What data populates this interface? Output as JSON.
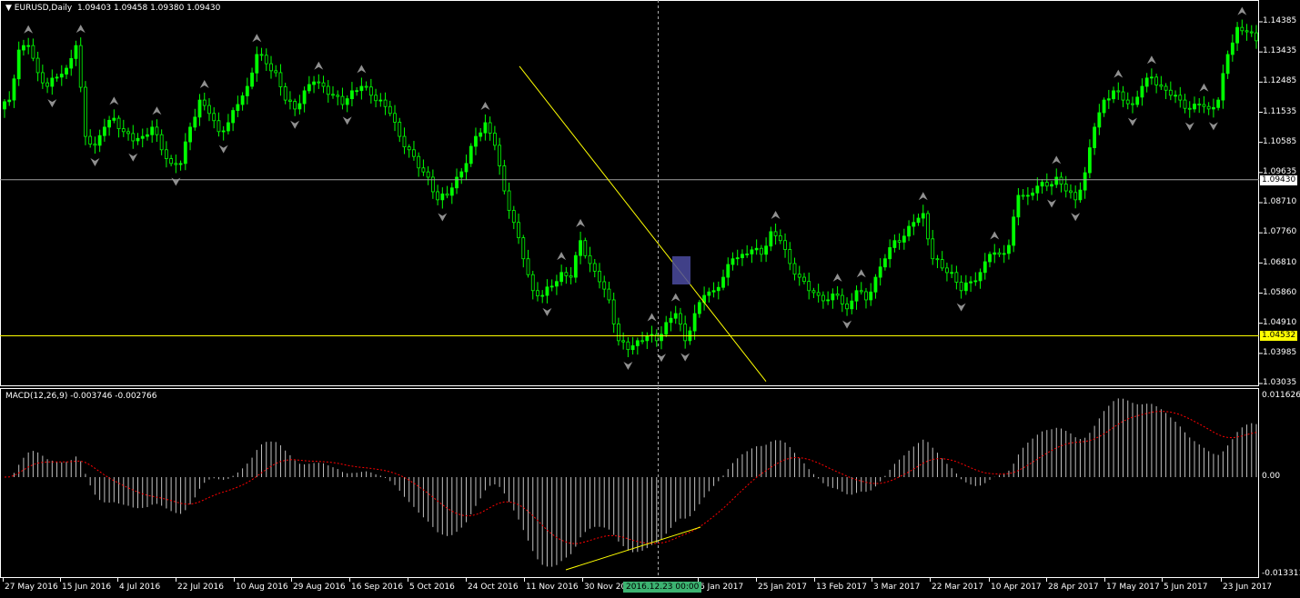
{
  "header": {
    "symbol": "EURUSD,Daily",
    "ohlc": "1.09403 1.09458 1.09380 1.09430",
    "menu_icon": "triangle-down-icon"
  },
  "macd_header": {
    "label": "MACD(12,26,9) -0.003746 -0.002766"
  },
  "price_axis": [
    "1.14385",
    "1.13435",
    "1.12485",
    "1.11535",
    "1.10585",
    "1.09635",
    "1.08710",
    "1.07760",
    "1.06810",
    "1.05860",
    "1.04910",
    "1.03985",
    "1.03035"
  ],
  "price_tags": {
    "bid": "1.09430",
    "hline": "1.04532"
  },
  "macd_axis": [
    "0.011626",
    "0.00",
    "-0.013311"
  ],
  "date_axis": [
    "27 May 2016",
    "15 Jun 2016",
    "4 Jul 2016",
    "22 Jul 2016",
    "10 Aug 2016",
    "29 Aug 2016",
    "16 Sep 2016",
    "5 Oct 2016",
    "24 Oct 2016",
    "11 Nov 2016",
    "30 Nov 2016",
    "6 Jan 2017",
    "25 Jan 2017",
    "13 Feb 2017",
    "3 Mar 2017",
    "22 Mar 2017",
    "10 Apr 2017",
    "28 Apr 2017",
    "17 May 2017",
    "5 Jun 2017",
    "23 Jun 2017"
  ],
  "crosshair_label": "2016.12.23 00:00",
  "colors": {
    "bull": "#00ff00",
    "bear": "#00ff00",
    "trendline": "#ffff00",
    "signal": "#ff0000",
    "histogram": "#c0c0c0",
    "highlight": "#4b4ba0",
    "crosshair_tag": "#3cb371"
  },
  "chart_data": {
    "type": "candlestick",
    "title": "EURUSD,Daily",
    "ylim": [
      1.03035,
      1.14385
    ],
    "x_range": [
      "27 May 2016",
      "23 Jun 2017"
    ],
    "closes": [
      1.1165,
      1.1193,
      1.135,
      1.1364,
      1.1279,
      1.1236,
      1.1265,
      1.1293,
      1.1364,
      1.1079,
      1.1051,
      1.1108,
      1.1136,
      1.1094,
      1.1065,
      1.1079,
      1.1108,
      1.1037,
      1.0994,
      1.0994,
      1.1108,
      1.1193,
      1.1151,
      1.1094,
      1.1122,
      1.1179,
      1.1236,
      1.1336,
      1.1307,
      1.1279,
      1.1193,
      1.1165,
      1.1222,
      1.125,
      1.1236,
      1.1208,
      1.1179,
      1.1222,
      1.1236,
      1.1208,
      1.1193,
      1.1151,
      1.1079,
      1.1037,
      1.098,
      1.0951,
      1.088,
      1.0894,
      1.0951,
      1.0994,
      1.1079,
      1.1122,
      1.1051,
      1.0908,
      1.0809,
      1.0695,
      1.0595,
      1.058,
      1.0609,
      1.0652,
      1.0637,
      1.0752,
      1.068,
      1.0623,
      1.0566,
      1.0438,
      1.041,
      1.0438,
      1.0453,
      1.0438,
      1.0495,
      1.0523,
      1.0438,
      1.0523,
      1.058,
      1.0595,
      1.0637,
      1.0695,
      1.0709,
      1.0723,
      1.0709,
      1.078,
      1.0752,
      1.068,
      1.0637,
      1.0595,
      1.058,
      1.0566,
      1.058,
      1.0538,
      1.0595,
      1.0566,
      1.0637,
      1.0695,
      1.0752,
      1.0766,
      1.0809,
      1.0837,
      1.0695,
      1.0666,
      1.0652,
      1.0595,
      1.0623,
      1.0652,
      1.0709,
      1.0709,
      1.0737,
      1.0894,
      1.0894,
      1.0923,
      1.0923,
      1.0951,
      1.0908,
      1.088,
      1.0965,
      1.1108,
      1.1193,
      1.1222,
      1.1193,
      1.1179,
      1.1236,
      1.1265,
      1.1236,
      1.1208,
      1.1193,
      1.1165,
      1.1179,
      1.1165,
      1.1193,
      1.1336,
      1.1421,
      1.1407,
      1.1379
    ],
    "hlines": [
      {
        "price": 1.0943,
        "color": "#a0a0a0"
      },
      {
        "price": 1.04532,
        "color": "#ffff00"
      }
    ],
    "trendline": {
      "from": {
        "date": "11 Nov 2016",
        "price": 1.1299
      },
      "to": {
        "date": "13 Jan 2017",
        "price": 1.031
      }
    },
    "macd": {
      "fast": 12,
      "slow": 26,
      "signal": 9,
      "ylim": [
        -0.013311,
        0.011626
      ],
      "main": -0.003746,
      "signal_value": -0.002766
    }
  }
}
